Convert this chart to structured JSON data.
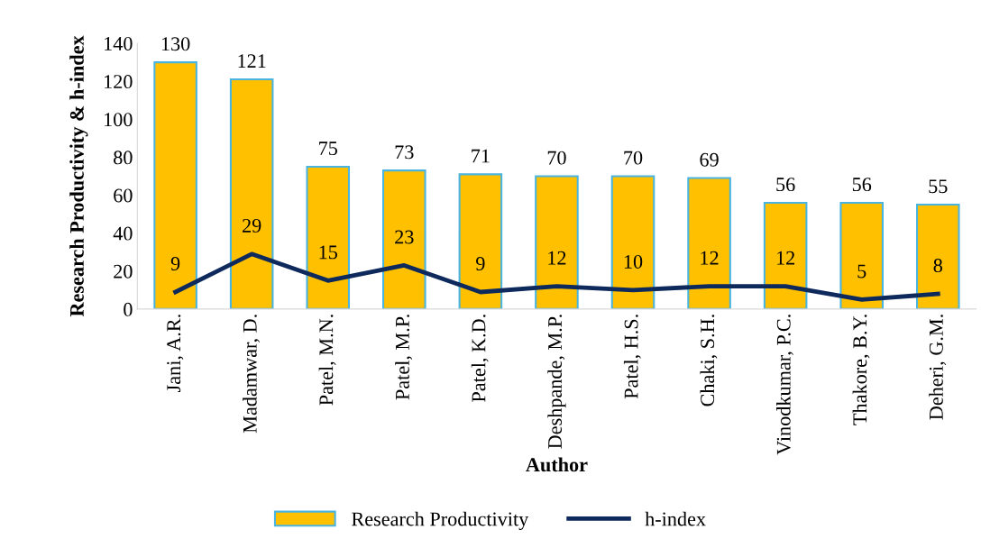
{
  "chart_data": {
    "type": "bar",
    "xlabel": "Author",
    "ylabel": "Research Productivity & h-index",
    "categories": [
      "Jani, A.R.",
      "Madamwar, D.",
      "Patel, M.N.",
      "Patel, M.P.",
      "Patel, K.D.",
      "Deshpande, M.P.",
      "Patel, H.S.",
      "Chaki, S.H.",
      "Vinodkumar, P.C.",
      "Thakore, B.Y.",
      "Deheri, G.M."
    ],
    "series": [
      {
        "name": "Research Productivity",
        "color": "#ffc000",
        "values": [
          130,
          121,
          75,
          73,
          71,
          70,
          70,
          69,
          56,
          56,
          55
        ]
      },
      {
        "name": "h-index",
        "type": "line",
        "color": "#0e2a5c",
        "values": [
          9,
          29,
          15,
          23,
          9,
          12,
          10,
          12,
          12,
          5,
          8
        ]
      }
    ],
    "ylim": [
      0,
      140
    ],
    "yticks": [
      0,
      20,
      40,
      60,
      80,
      100,
      120,
      140
    ],
    "grid": false,
    "legend": "bottom",
    "data_labels": true,
    "marker": "none",
    "line_style": "solid"
  }
}
